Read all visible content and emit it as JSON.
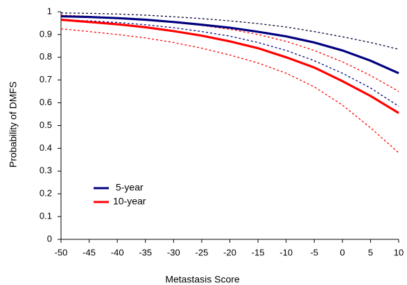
{
  "chart_data": {
    "type": "line",
    "xlabel": "Metastasis Score",
    "ylabel": "Probability of DMFS",
    "x": [
      -50,
      -45,
      -40,
      -35,
      -30,
      -25,
      -20,
      -15,
      -10,
      -5,
      0,
      5,
      10
    ],
    "series": [
      {
        "color": "#000033",
        "dash": true,
        "values": [
          0.995,
          0.993,
          0.99,
          0.985,
          0.978,
          0.97,
          0.96,
          0.948,
          0.933,
          0.913,
          0.89,
          0.865,
          0.835
        ]
      },
      {
        "color": "#000080",
        "dash": true,
        "values": [
          0.965,
          0.96,
          0.953,
          0.943,
          0.93,
          0.913,
          0.893,
          0.865,
          0.83,
          0.785,
          0.73,
          0.665,
          0.585
        ]
      },
      {
        "color": "#ff0000",
        "dash": true,
        "values": [
          0.985,
          0.98,
          0.972,
          0.963,
          0.953,
          0.94,
          0.923,
          0.9,
          0.87,
          0.83,
          0.78,
          0.72,
          0.65
        ]
      },
      {
        "color": "#ff0000",
        "dash": true,
        "values": [
          0.925,
          0.913,
          0.9,
          0.885,
          0.865,
          0.84,
          0.81,
          0.775,
          0.73,
          0.67,
          0.59,
          0.49,
          0.38
        ]
      },
      {
        "name": " 5-year",
        "color": "#000080",
        "values": [
          0.98,
          0.977,
          0.972,
          0.965,
          0.955,
          0.943,
          0.93,
          0.912,
          0.892,
          0.865,
          0.83,
          0.785,
          0.73
        ]
      },
      {
        "name": "10-year",
        "color": "#ff0000",
        "values": [
          0.965,
          0.955,
          0.945,
          0.932,
          0.915,
          0.895,
          0.87,
          0.84,
          0.8,
          0.755,
          0.695,
          0.63,
          0.555
        ]
      }
    ],
    "xlim": [
      -50,
      10
    ],
    "xticks": [
      -50,
      -45,
      -40,
      -35,
      -30,
      -25,
      -20,
      -15,
      -10,
      -5,
      0,
      5,
      10
    ],
    "ylim": [
      0,
      1
    ],
    "yticks": [
      0,
      0.1,
      0.2,
      0.3,
      0.4,
      0.5,
      0.6,
      0.7,
      0.8,
      0.9,
      1
    ],
    "grid": false,
    "legend": "lower left"
  }
}
